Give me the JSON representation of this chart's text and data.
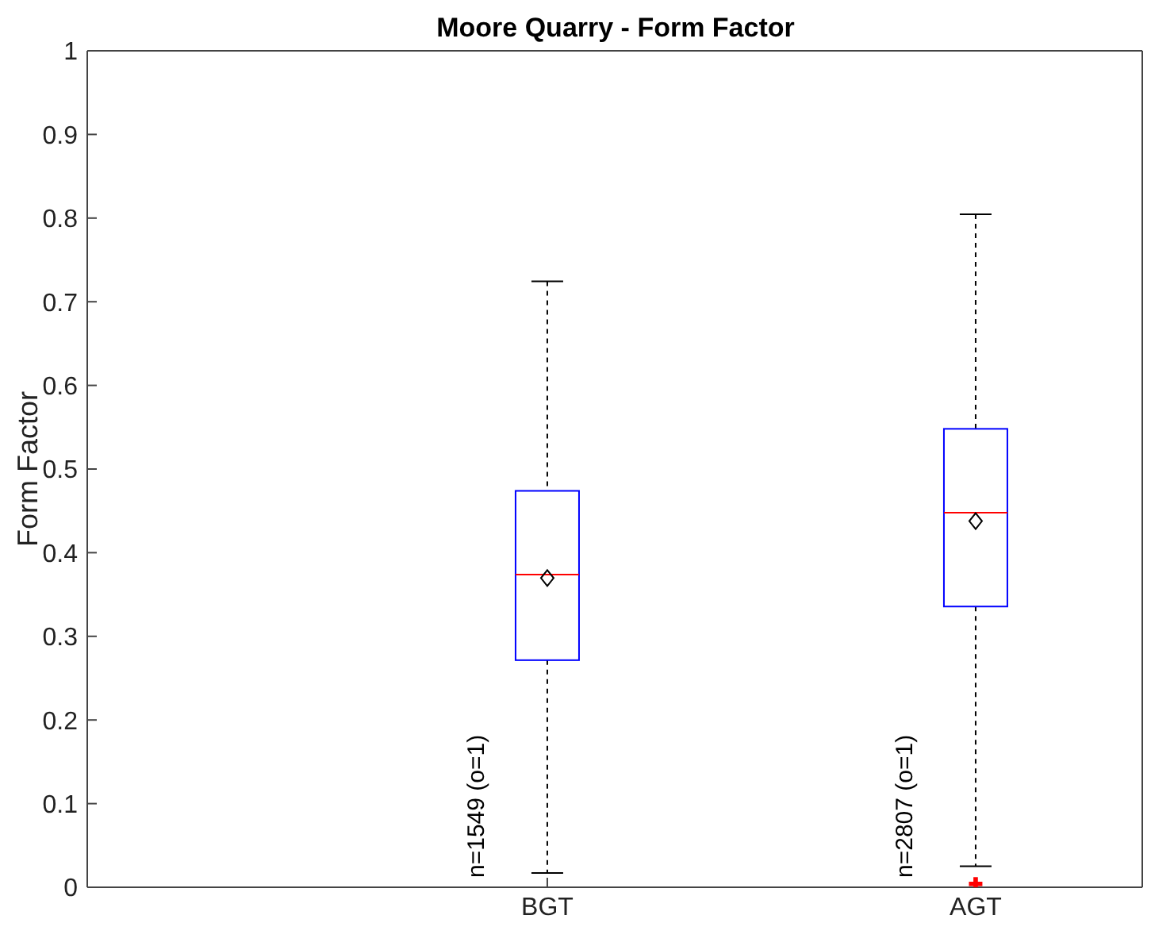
{
  "chart_data": {
    "type": "box",
    "title": "Moore Quarry - Form Factor",
    "ylabel": "Form Factor",
    "categories": [
      "BGT",
      "AGT"
    ],
    "boxes": [
      {
        "low": 0.017,
        "q1": 0.271,
        "median": 0.373,
        "q3": 0.473,
        "high": 0.723,
        "mean": 0.369
      },
      {
        "low": 0.025,
        "q1": 0.335,
        "median": 0.447,
        "q3": 0.547,
        "high": 0.803,
        "mean": 0.437,
        "outliers": [
          0.004
        ]
      }
    ],
    "color": "#0000ff",
    "ylim": [
      0,
      1
    ],
    "yticks": [
      0,
      0.1,
      0.2,
      0.3,
      0.4,
      0.5,
      0.6,
      0.7,
      0.8,
      0.9,
      1
    ],
    "annotations": [
      "n=1549 (o=1)",
      "n=2807 (o=1)"
    ]
  }
}
